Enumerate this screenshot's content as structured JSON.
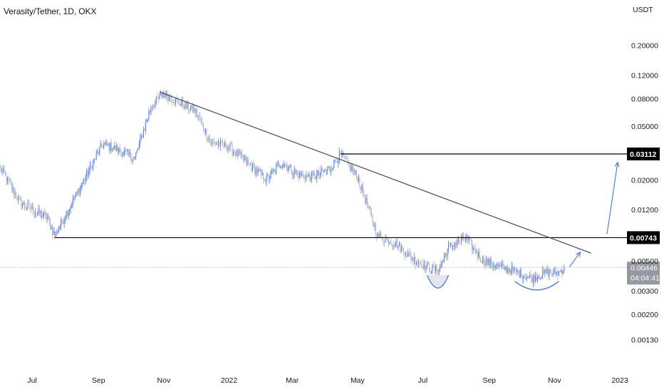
{
  "chart_data": {
    "type": "candlestick",
    "title": "Verasity/Tether, 1D, OKX",
    "currency_label": "USDT",
    "scale": "log",
    "ylim": [
      0.0011,
      0.26
    ],
    "x_tick_labels": [
      "Jul",
      "Sep",
      "Nov",
      "2022",
      "Mar",
      "May",
      "Jul",
      "Sep",
      "Nov",
      "2023"
    ],
    "y_tick_values": [
      0.2,
      0.12,
      0.08,
      0.05,
      0.02,
      0.012,
      0.005,
      0.003,
      0.002,
      0.0013
    ],
    "y_tick_labels": [
      "0.20000",
      "0.12000",
      "0.08000",
      "0.05000",
      "0.02000",
      "0.01200",
      "0.00500",
      "0.00300",
      "0.00200",
      "0.00130"
    ],
    "colors": {
      "up": "#5b7fd9",
      "down": "#b2b5be",
      "trendline": "#555555",
      "level": "#000000",
      "arrow": "#4a77c8",
      "current_price_bg": "#9598a1"
    },
    "price_series_keypoints": [
      {
        "date": "2021-06-01",
        "close": 0.0245
      },
      {
        "date": "2021-06-20",
        "close": 0.0135
      },
      {
        "date": "2021-07-15",
        "close": 0.0105
      },
      {
        "date": "2021-07-22",
        "close": 0.0077
      },
      {
        "date": "2021-08-05",
        "close": 0.0125
      },
      {
        "date": "2021-08-20",
        "close": 0.021
      },
      {
        "date": "2021-09-05",
        "close": 0.037
      },
      {
        "date": "2021-09-20",
        "close": 0.033
      },
      {
        "date": "2021-10-05",
        "close": 0.029
      },
      {
        "date": "2021-10-20",
        "close": 0.07
      },
      {
        "date": "2021-11-01",
        "close": 0.088
      },
      {
        "date": "2021-11-15",
        "close": 0.075
      },
      {
        "date": "2021-12-01",
        "close": 0.064
      },
      {
        "date": "2021-12-15",
        "close": 0.038
      },
      {
        "date": "2022-01-01",
        "close": 0.035
      },
      {
        "date": "2022-01-20",
        "close": 0.026
      },
      {
        "date": "2022-02-05",
        "close": 0.02
      },
      {
        "date": "2022-02-20",
        "close": 0.027
      },
      {
        "date": "2022-03-05",
        "close": 0.022
      },
      {
        "date": "2022-03-20",
        "close": 0.021
      },
      {
        "date": "2022-04-05",
        "close": 0.024
      },
      {
        "date": "2022-04-15",
        "close": 0.031
      },
      {
        "date": "2022-05-01",
        "close": 0.021
      },
      {
        "date": "2022-05-10",
        "close": 0.013
      },
      {
        "date": "2022-05-20",
        "close": 0.0076
      },
      {
        "date": "2022-06-05",
        "close": 0.0068
      },
      {
        "date": "2022-06-20",
        "close": 0.0053
      },
      {
        "date": "2022-07-05",
        "close": 0.0045
      },
      {
        "date": "2022-07-15",
        "close": 0.0042
      },
      {
        "date": "2022-07-25",
        "close": 0.0063
      },
      {
        "date": "2022-08-10",
        "close": 0.0074
      },
      {
        "date": "2022-08-25",
        "close": 0.0051
      },
      {
        "date": "2022-09-10",
        "close": 0.0045
      },
      {
        "date": "2022-09-25",
        "close": 0.0042
      },
      {
        "date": "2022-10-10",
        "close": 0.0037
      },
      {
        "date": "2022-10-25",
        "close": 0.0041
      },
      {
        "date": "2022-11-05",
        "close": 0.0041
      },
      {
        "date": "2022-11-10",
        "close": 0.00446
      }
    ],
    "annotations": {
      "horizontal_levels": [
        {
          "price": 0.03112,
          "label": "0.03112",
          "from": "2022-04-15"
        },
        {
          "price": 0.00743,
          "label": "0.00743",
          "from": "2021-07-22"
        }
      ],
      "descending_trendline": {
        "from": {
          "date": "2021-10-28",
          "price": 0.09
        },
        "to": {
          "date": "2022-12-05",
          "price": 0.0057
        }
      },
      "target_arrows": [
        {
          "from": {
            "date": "2022-12-20",
            "price": 0.0079
          },
          "to": {
            "date": "2022-12-30",
            "price": 0.027
          }
        },
        {
          "from": {
            "date": "2022-11-15",
            "price": 0.0045
          },
          "to": {
            "date": "2022-11-25",
            "price": 0.0058
          }
        }
      ],
      "rounded_bottoms": [
        {
          "from": "2022-07-05",
          "to": "2022-07-25"
        },
        {
          "from": "2022-09-25",
          "to": "2022-11-05"
        }
      ]
    },
    "current_price": {
      "value": 0.00446,
      "label": "0.00446",
      "countdown": "04:04:41"
    }
  }
}
